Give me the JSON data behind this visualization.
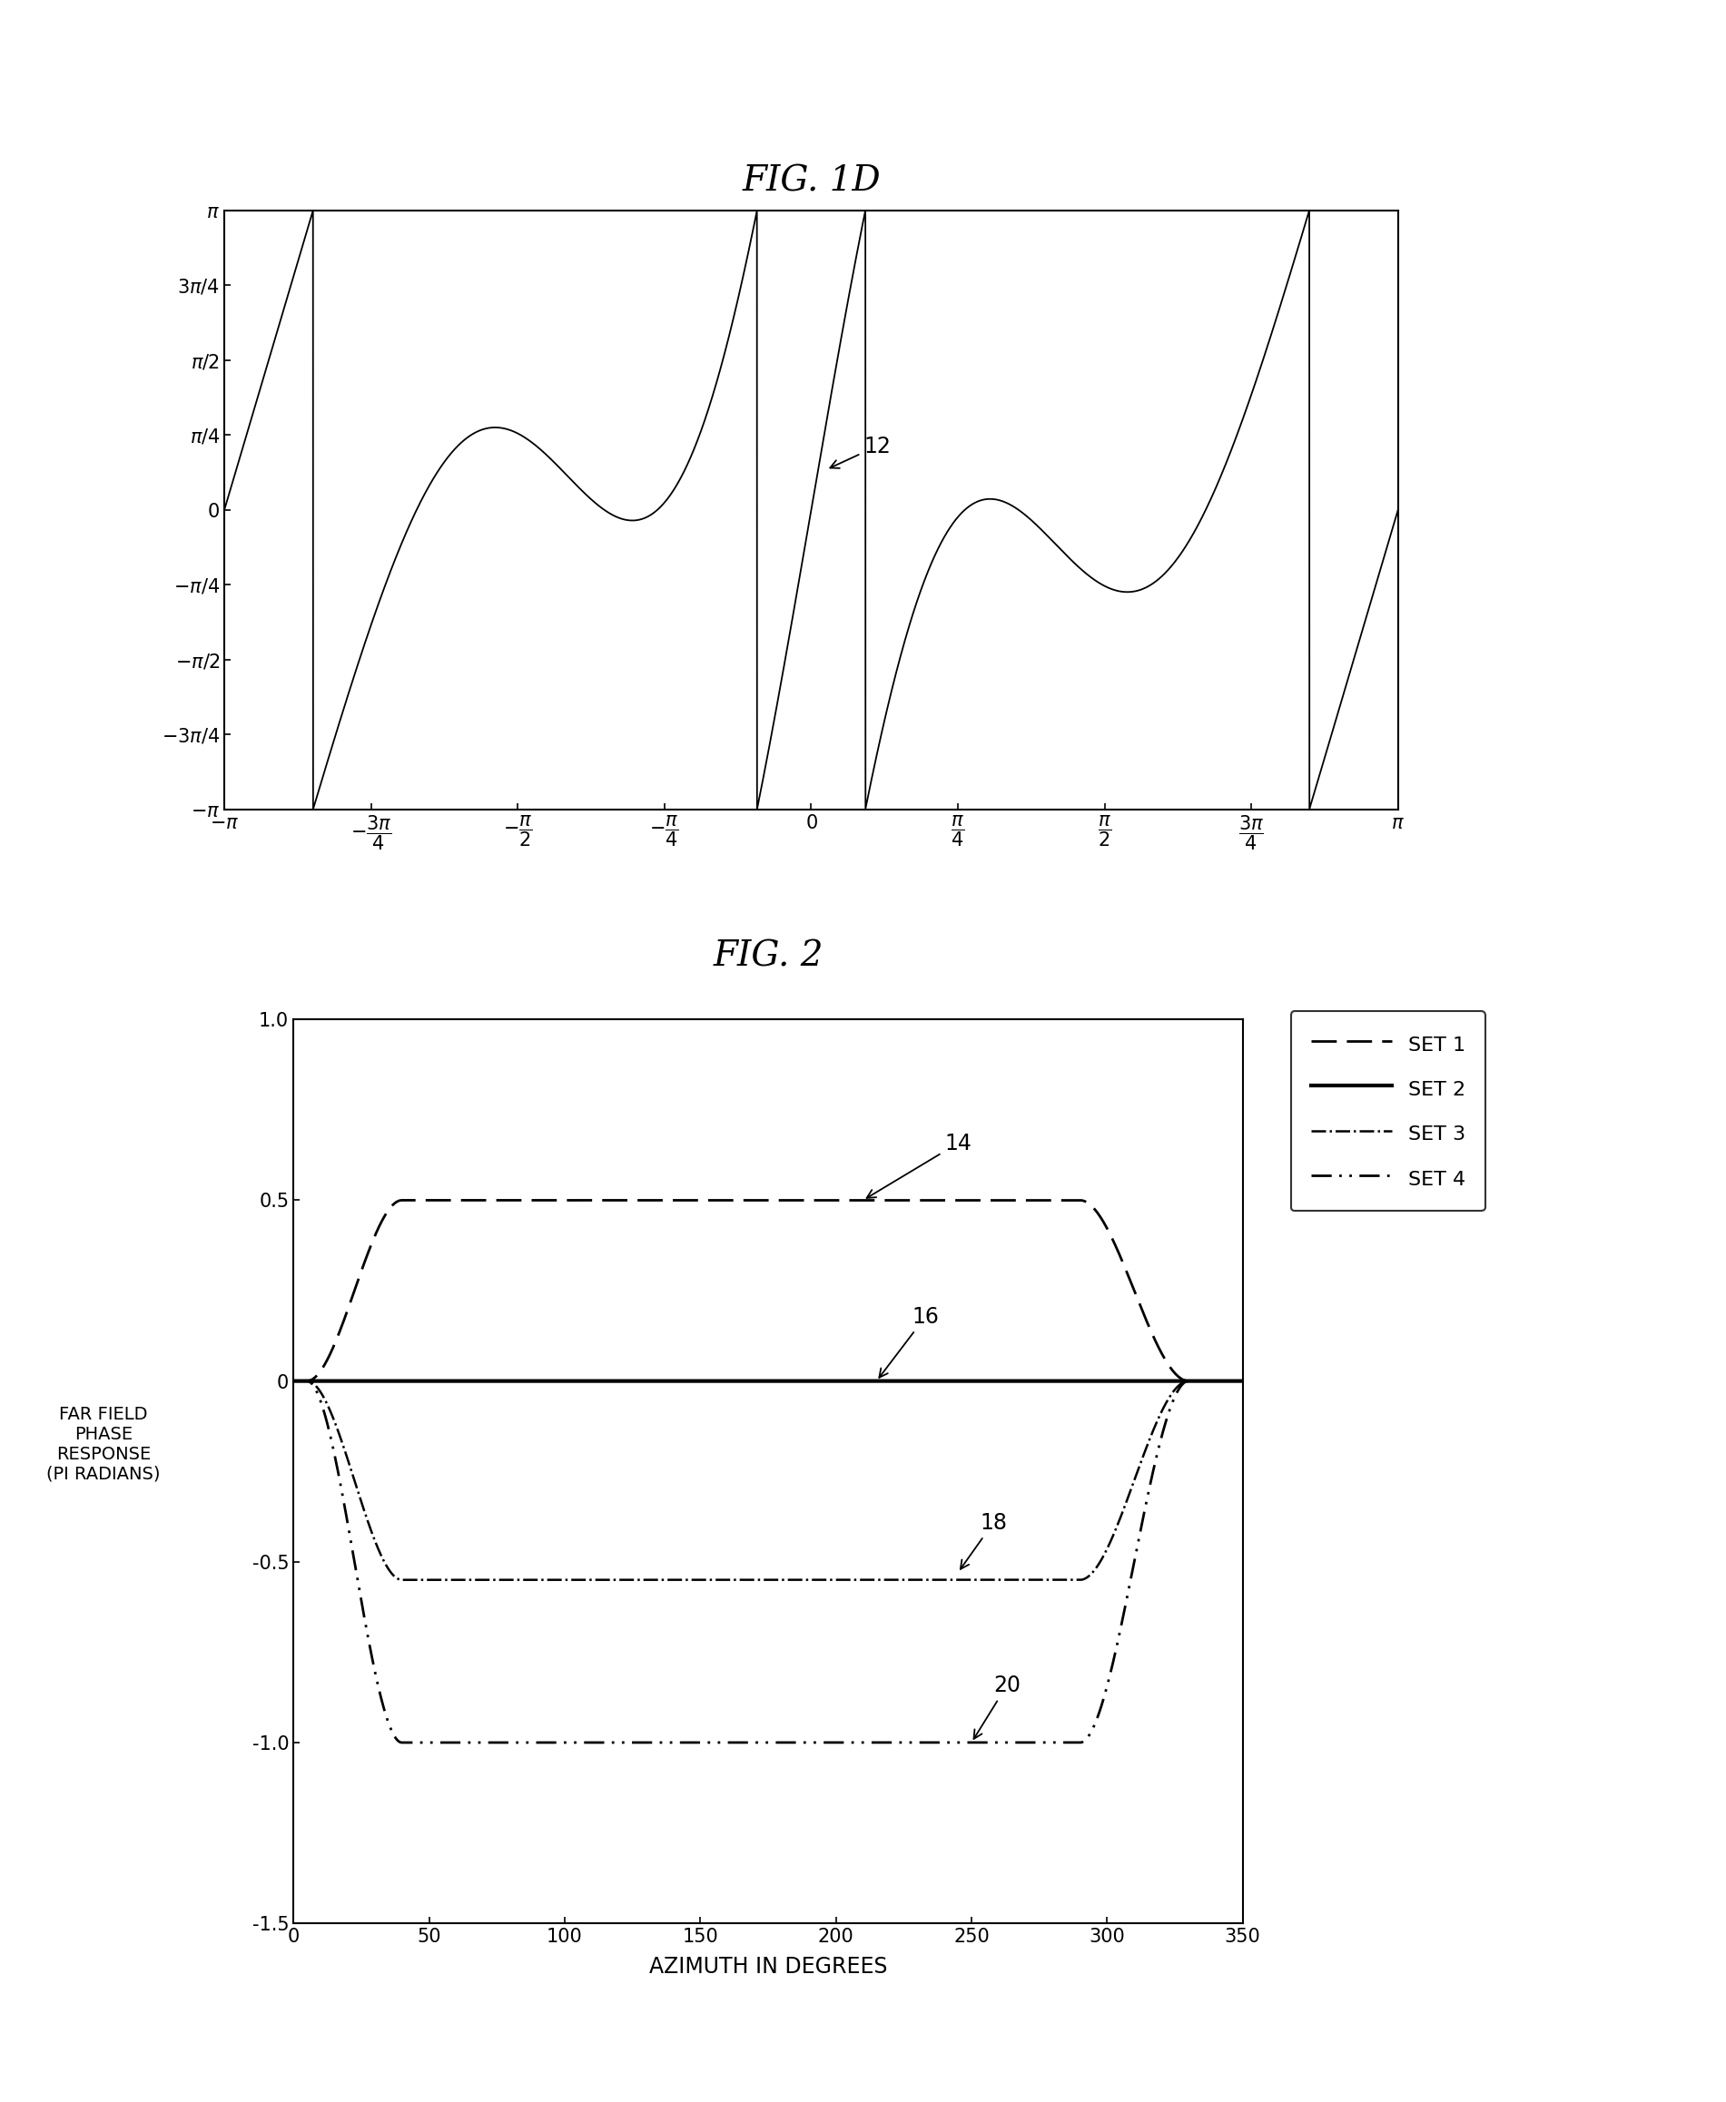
{
  "fig1d_title": "FIG. 1D",
  "fig2_title": "FIG. 2",
  "fig2_xlabel": "AZIMUTH IN DEGREES",
  "fig2_ylabel": "FAR FIELD\nPHASE\nRESPONSE\n(PI RADIANS)",
  "fig2_xlim": [
    0,
    350
  ],
  "fig2_ylim": [
    -1.5,
    1.0
  ],
  "fig2_xticks": [
    0,
    50,
    100,
    150,
    200,
    250,
    300,
    350
  ],
  "fig2_yticks": [
    -1.5,
    -1.0,
    -0.5,
    0.0,
    0.5,
    1.0
  ],
  "fig2_yticklabels": [
    "-1.5",
    "-1.0",
    "-0.5",
    "0",
    "0.5",
    "1.0"
  ],
  "legend_labels": [
    "SET 1",
    "SET 2",
    "SET 3",
    "SET 4"
  ],
  "background_color": "#ffffff",
  "line_color": "#000000"
}
